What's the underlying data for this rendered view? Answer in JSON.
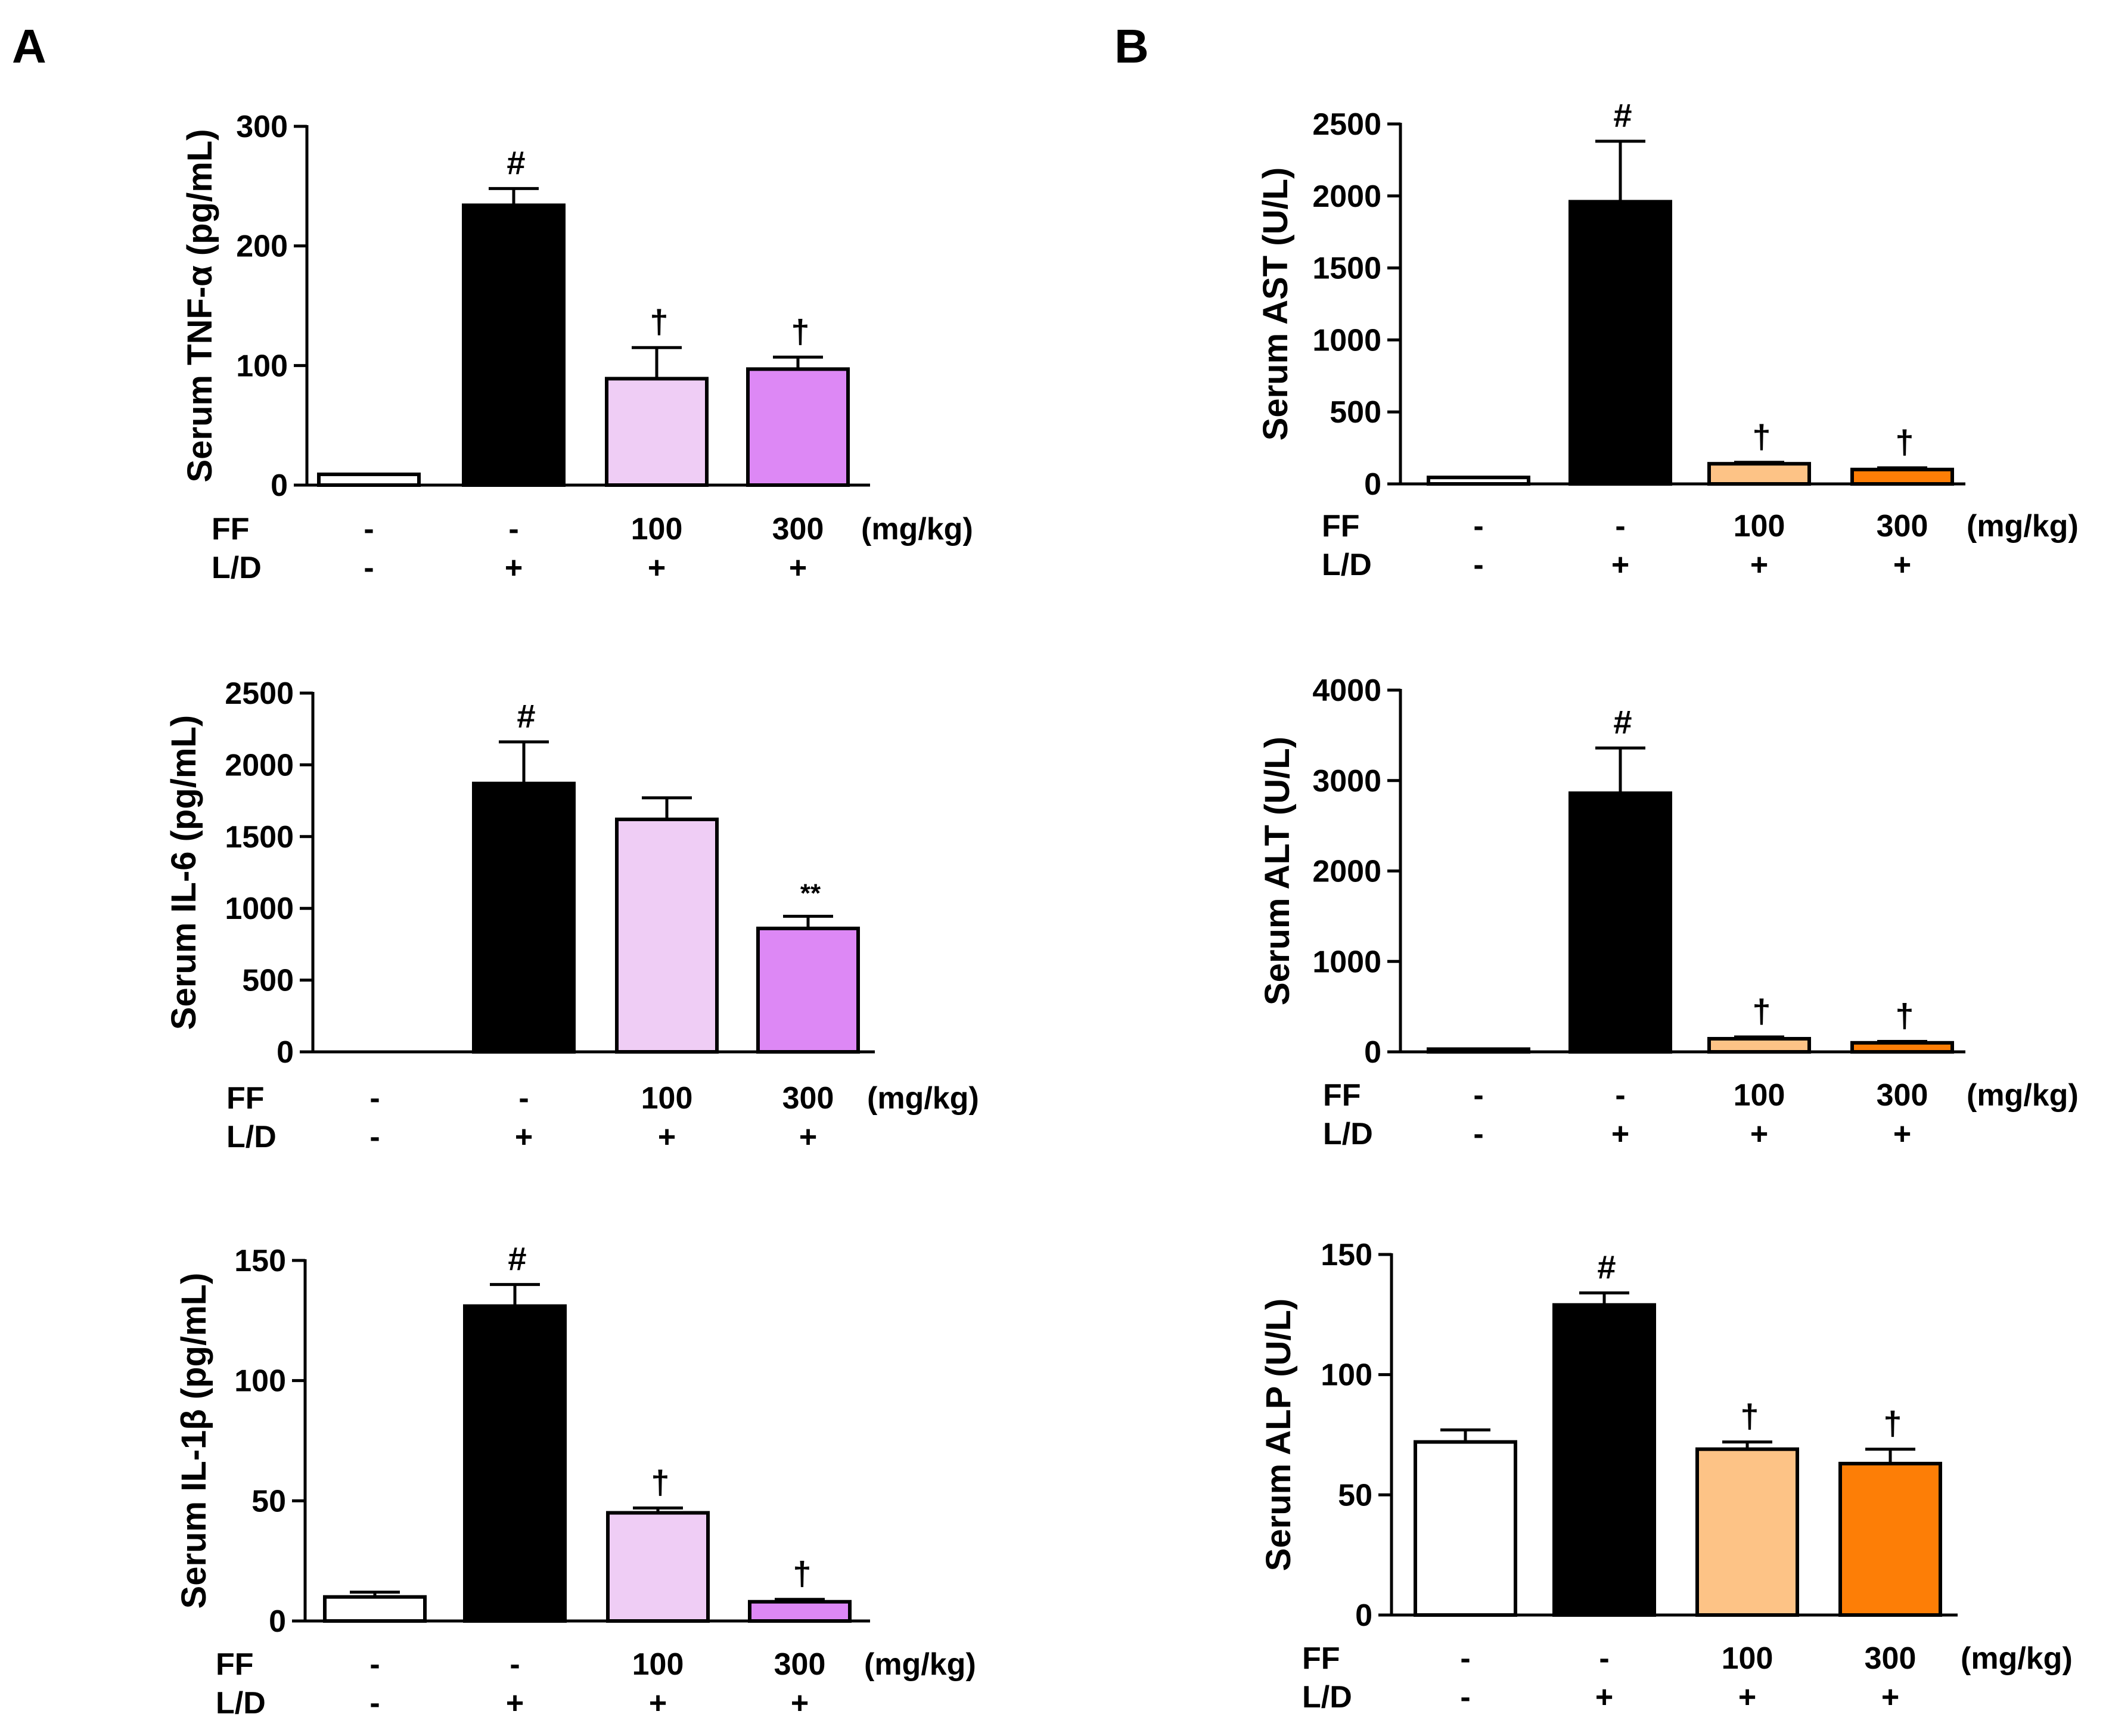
{
  "panels": [
    {
      "letter": "A"
    },
    {
      "letter": "B"
    }
  ],
  "conditions": {
    "row1_label": "FF",
    "row2_label": "L/D",
    "units": "(mg/kg)",
    "ff": [
      "-",
      "-",
      "100",
      "300"
    ],
    "ld": [
      "-",
      "+",
      "+",
      "+"
    ]
  },
  "colors": {
    "control": "#ffffff",
    "ld": "#000000",
    "purple_100": "#efcdf5",
    "purple_300": "#dd88f5",
    "orange_100": "#fdc386",
    "orange_300": "#fd7e06"
  },
  "chart_data": [
    {
      "type": "bar",
      "panel": "A",
      "position": "top",
      "title": "",
      "xlabel": "",
      "ylabel": "Serum TNF-α (pg/mL)",
      "ylim": [
        0,
        300
      ],
      "yticks": [
        0,
        100,
        200,
        300
      ],
      "categories": [
        "-/-",
        "-/+",
        "100/+",
        "300/+"
      ],
      "values": [
        9,
        234,
        89,
        97
      ],
      "errors": [
        0,
        14,
        26,
        10
      ],
      "annotations": [
        "",
        "#",
        "†",
        "†"
      ],
      "colors": [
        "#ffffff",
        "#000000",
        "#efcdf5",
        "#dd88f5"
      ]
    },
    {
      "type": "bar",
      "panel": "A",
      "position": "middle",
      "title": "",
      "xlabel": "",
      "ylabel": "Serum IL-6 (pg/mL)",
      "ylim": [
        0,
        2500
      ],
      "yticks": [
        0,
        500,
        1000,
        1500,
        2000,
        2500
      ],
      "categories": [
        "-/-",
        "-/+",
        "100/+",
        "300/+"
      ],
      "values": [
        0,
        1870,
        1620,
        860
      ],
      "errors": [
        0,
        290,
        150,
        85
      ],
      "annotations": [
        "",
        "#",
        "",
        "**"
      ],
      "colors": [
        "#ffffff",
        "#000000",
        "#efcdf5",
        "#dd88f5"
      ]
    },
    {
      "type": "bar",
      "panel": "A",
      "position": "bottom",
      "title": "",
      "xlabel": "",
      "ylabel": "Serum IL-1β (pg/mL)",
      "ylim": [
        0,
        150
      ],
      "yticks": [
        0,
        50,
        100,
        150
      ],
      "categories": [
        "-/-",
        "-/+",
        "100/+",
        "300/+"
      ],
      "values": [
        10,
        131,
        45,
        8
      ],
      "errors": [
        2,
        9,
        2,
        1
      ],
      "annotations": [
        "",
        "#",
        "†",
        "†"
      ],
      "colors": [
        "#ffffff",
        "#000000",
        "#efcdf5",
        "#dd88f5"
      ]
    },
    {
      "type": "bar",
      "panel": "B",
      "position": "top",
      "title": "",
      "xlabel": "",
      "ylabel": "Serum AST (U/L)",
      "ylim": [
        0,
        2500
      ],
      "yticks": [
        0,
        500,
        1000,
        1500,
        2000,
        2500
      ],
      "categories": [
        "-/-",
        "-/+",
        "100/+",
        "300/+"
      ],
      "values": [
        45,
        1960,
        140,
        100
      ],
      "errors": [
        0,
        420,
        10,
        12
      ],
      "annotations": [
        "",
        "#",
        "†",
        "†"
      ],
      "colors": [
        "#ffffff",
        "#000000",
        "#fdc386",
        "#fd7e06"
      ]
    },
    {
      "type": "bar",
      "panel": "B",
      "position": "middle",
      "title": "",
      "xlabel": "",
      "ylabel": "Serum ALT (U/L)",
      "ylim": [
        0,
        4000
      ],
      "yticks": [
        0,
        1000,
        2000,
        3000,
        4000
      ],
      "categories": [
        "-/-",
        "-/+",
        "100/+",
        "300/+"
      ],
      "values": [
        30,
        2860,
        145,
        100
      ],
      "errors": [
        0,
        500,
        20,
        15
      ],
      "annotations": [
        "",
        "#",
        "†",
        "†"
      ],
      "colors": [
        "#ffffff",
        "#000000",
        "#fdc386",
        "#fd7e06"
      ]
    },
    {
      "type": "bar",
      "panel": "B",
      "position": "bottom",
      "title": "",
      "xlabel": "",
      "ylabel": "Serum ALP (U/L)",
      "ylim": [
        0,
        150
      ],
      "yticks": [
        0,
        50,
        100,
        150
      ],
      "categories": [
        "-/-",
        "-/+",
        "100/+",
        "300/+"
      ],
      "values": [
        72,
        129,
        69,
        63
      ],
      "errors": [
        5,
        5,
        3,
        6
      ],
      "annotations": [
        "",
        "#",
        "†",
        "†"
      ],
      "colors": [
        "#ffffff",
        "#000000",
        "#fdc386",
        "#fd7e06"
      ]
    }
  ]
}
